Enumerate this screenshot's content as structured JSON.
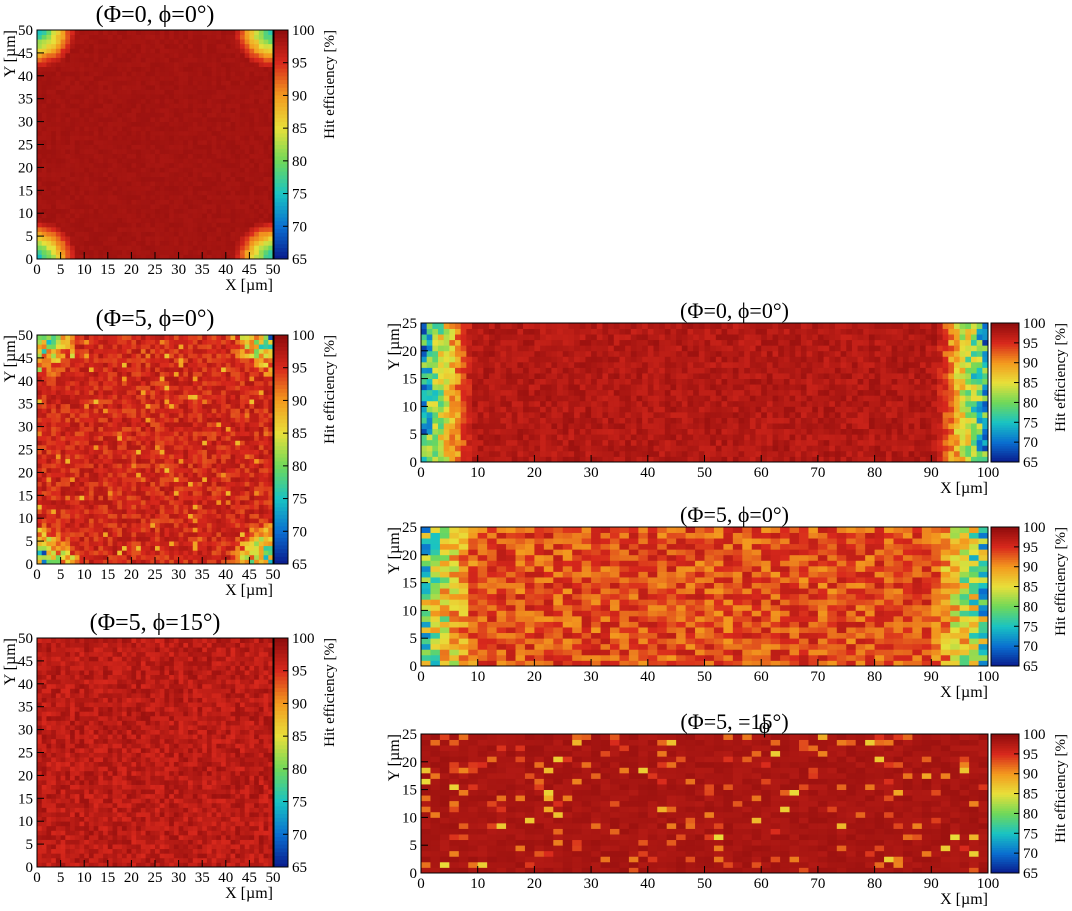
{
  "colorbar": {
    "label": "Hit efficiency [%]",
    "min": 65,
    "max": 100,
    "ticks": [
      65,
      70,
      75,
      80,
      85,
      90,
      95,
      100
    ],
    "palette": [
      "#0a1a8c",
      "#0a6fd0",
      "#19c3c3",
      "#6fd85a",
      "#e8e03a",
      "#f39a1e",
      "#d8281c",
      "#8e0c0c"
    ]
  },
  "chart_data": [
    {
      "type": "heatmap",
      "title": "(Φ=0, ϕ=0°)",
      "xlabel": "X [µm]",
      "ylabel": "Y [µm]",
      "xlim": [
        0,
        50
      ],
      "ylim": [
        0,
        50
      ],
      "xticks": [
        0,
        5,
        10,
        15,
        20,
        25,
        30,
        35,
        40,
        45,
        50
      ],
      "yticks": [
        0,
        5,
        10,
        15,
        20,
        25,
        30,
        35,
        40,
        45,
        50
      ],
      "colorbar_label": "Hit efficiency [%]",
      "zlim": [
        65,
        100
      ],
      "bins": [
        50,
        50
      ],
      "pattern": "corners",
      "corner_min_efficiency": 75,
      "bulk_efficiency": 99
    },
    {
      "type": "heatmap",
      "title": "(Φ=5, ϕ=0°)",
      "xlabel": "X [µm]",
      "ylabel": "Y [µm]",
      "xlim": [
        0,
        50
      ],
      "ylim": [
        0,
        50
      ],
      "xticks": [
        0,
        5,
        10,
        15,
        20,
        25,
        30,
        35,
        40,
        45,
        50
      ],
      "yticks": [
        0,
        5,
        10,
        15,
        20,
        25,
        30,
        35,
        40,
        45,
        50
      ],
      "colorbar_label": "Hit efficiency [%]",
      "zlim": [
        65,
        100
      ],
      "bins": [
        50,
        50
      ],
      "pattern": "corners-noisy",
      "corner_min_efficiency": 78,
      "bulk_efficiency": 98
    },
    {
      "type": "heatmap",
      "title": "(Φ=5, ϕ=15°)",
      "xlabel": "X [µm]",
      "ylabel": "Y [µm]",
      "xlim": [
        0,
        50
      ],
      "ylim": [
        0,
        50
      ],
      "xticks": [
        0,
        5,
        10,
        15,
        20,
        25,
        30,
        35,
        40,
        45,
        50
      ],
      "yticks": [
        0,
        5,
        10,
        15,
        20,
        25,
        30,
        35,
        40,
        45,
        50
      ],
      "colorbar_label": "Hit efficiency [%]",
      "zlim": [
        65,
        100
      ],
      "bins": [
        50,
        50
      ],
      "pattern": "uniform",
      "bulk_efficiency": 99
    },
    {
      "type": "heatmap",
      "title": "(Φ=0, ϕ=0°)",
      "xlabel": "X [µm]",
      "ylabel": "Y [µm]",
      "xlim": [
        0,
        100
      ],
      "ylim": [
        0,
        25
      ],
      "xticks": [
        0,
        10,
        20,
        30,
        40,
        50,
        60,
        70,
        80,
        90,
        100
      ],
      "yticks": [
        0,
        5,
        10,
        15,
        20,
        25
      ],
      "colorbar_label": "Hit efficiency [%]",
      "zlim": [
        65,
        100
      ],
      "bins": [
        100,
        25
      ],
      "pattern": "edges",
      "edge_min_efficiency": 75,
      "bulk_efficiency": 99
    },
    {
      "type": "heatmap",
      "title": "(Φ=5, ϕ=0°)",
      "xlabel": "X [µm]",
      "ylabel": "Y [µm]",
      "xlim": [
        0,
        100
      ],
      "ylim": [
        0,
        25
      ],
      "xticks": [
        0,
        10,
        20,
        30,
        40,
        50,
        60,
        70,
        80,
        90,
        100
      ],
      "yticks": [
        0,
        5,
        10,
        15,
        20,
        25
      ],
      "colorbar_label": "Hit efficiency [%]",
      "zlim": [
        65,
        100
      ],
      "bins": [
        60,
        25
      ],
      "pattern": "edges-noisy",
      "edge_min_efficiency": 80,
      "bulk_efficiency": 97
    },
    {
      "type": "heatmap",
      "title": "(Φ=5,   =15°)",
      "title_overprint": "ϕ",
      "xlabel": "X [µm]",
      "ylabel": "Y [µm]",
      "xlim": [
        0,
        100
      ],
      "ylim": [
        0,
        25
      ],
      "xticks": [
        0,
        10,
        20,
        30,
        40,
        50,
        60,
        70,
        80,
        90,
        100
      ],
      "yticks": [
        0,
        5,
        10,
        15,
        20,
        25
      ],
      "colorbar_label": "Hit efficiency [%]",
      "zlim": [
        65,
        100
      ],
      "bins": [
        60,
        25
      ],
      "pattern": "sparse",
      "bulk_efficiency": 99
    }
  ]
}
